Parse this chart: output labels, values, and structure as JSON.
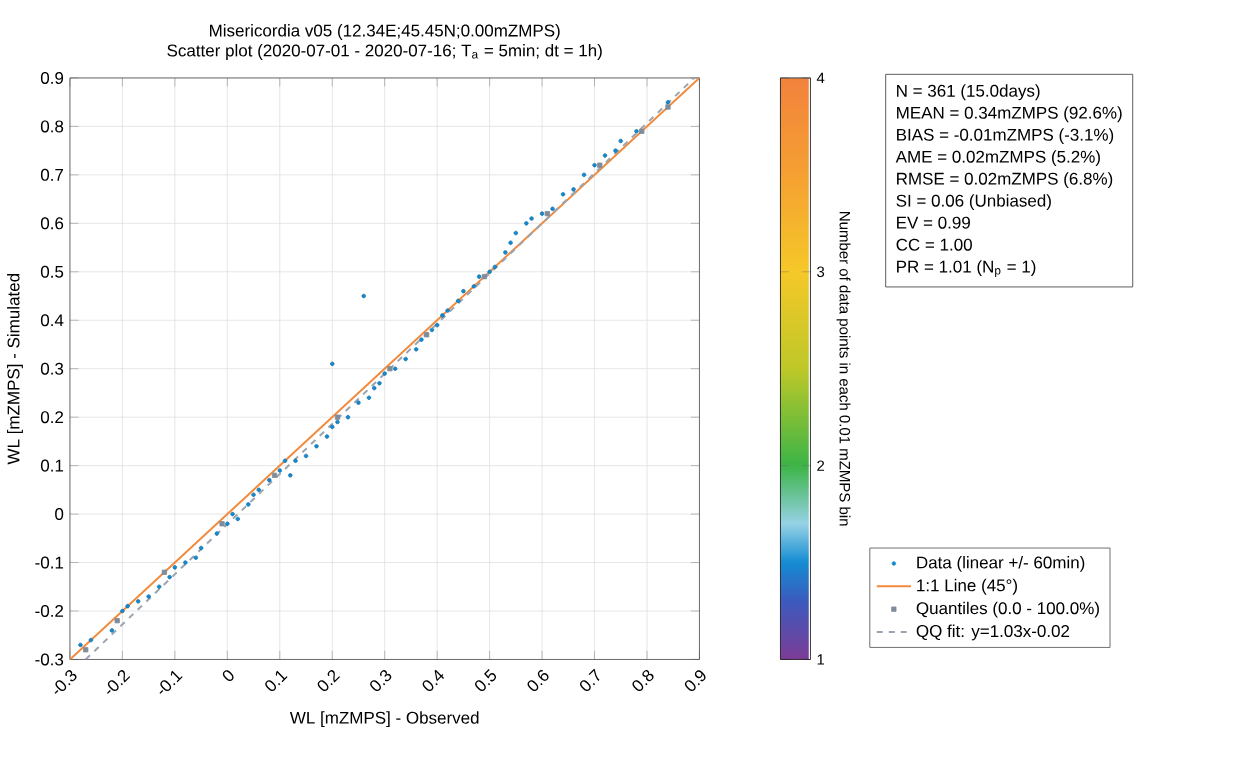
{
  "chart_data": {
    "type": "scatter",
    "title": "Misericordia v05 (12.34E;45.45N;0.00mZMPS)",
    "subtitle": "Scatter plot  (2020-07-01 - 2020-07-16; T$_{a}$ = 5min; dt = 1h)",
    "xlabel": "WL [mZMPS] - Observed",
    "ylabel": "WL [mZMPS] - Simulated",
    "clabel": "Number of data points in each 0.01 mZMPS bin",
    "xlim": [
      -0.3,
      0.9
    ],
    "ylim": [
      -0.3,
      0.9
    ],
    "xticks": [
      -0.3,
      -0.2,
      -0.1,
      0,
      0.1,
      0.2,
      0.3,
      0.4,
      0.5,
      0.6,
      0.7,
      0.8,
      0.9
    ],
    "yticks": [
      -0.3,
      -0.2,
      -0.1,
      0,
      0.1,
      0.2,
      0.3,
      0.4,
      0.5,
      0.6,
      0.7,
      0.8,
      0.9
    ],
    "clim": [
      1,
      4
    ],
    "cticks": [
      1,
      2,
      3,
      4
    ],
    "grid": true,
    "legend": "right",
    "annotations": [
      "N        = 361 (15.0days)",
      "MEAN = 0.34mZMPS (92.6%)",
      "BIAS   = -0.01mZMPS (-3.1%)",
      "AME   = 0.02mZMPS (5.2%)",
      "RMSE = 0.02mZMPS (6.8%)",
      "SI        = 0.06 (Unbiased)",
      "EV      = 0.99",
      "CC      = 1.00",
      "PR      = 1.01 (N$_{p}$ = 1)"
    ],
    "series": [
      {
        "name": "Data (linear +/- 60min)",
        "marker": "circle",
        "color": "#148cd2",
        "x": [
          -0.28,
          -0.26,
          -0.22,
          -0.2,
          -0.19,
          -0.17,
          -0.15,
          -0.13,
          -0.11,
          -0.1,
          -0.08,
          -0.06,
          -0.05,
          -0.02,
          0.0,
          0.01,
          0.02,
          0.04,
          0.05,
          0.06,
          0.08,
          0.1,
          0.11,
          0.12,
          0.13,
          0.15,
          0.17,
          0.19,
          0.2,
          0.21,
          0.23,
          0.25,
          0.26,
          0.2,
          0.27,
          0.28,
          0.29,
          0.3,
          0.32,
          0.34,
          0.36,
          0.37,
          0.39,
          0.4,
          0.41,
          0.42,
          0.44,
          0.45,
          0.47,
          0.48,
          0.5,
          0.51,
          0.53,
          0.54,
          0.55,
          0.57,
          0.58,
          0.6,
          0.62,
          0.64,
          0.66,
          0.68,
          0.7,
          0.72,
          0.74,
          0.75,
          0.78,
          0.84
        ],
        "values": [
          -0.27,
          -0.26,
          -0.24,
          -0.2,
          -0.19,
          -0.18,
          -0.17,
          -0.15,
          -0.13,
          -0.11,
          -0.1,
          -0.09,
          -0.07,
          -0.04,
          -0.02,
          0.0,
          -0.01,
          0.02,
          0.04,
          0.05,
          0.07,
          0.09,
          0.11,
          0.08,
          0.11,
          0.12,
          0.14,
          0.16,
          0.18,
          0.19,
          0.2,
          0.23,
          0.45,
          0.31,
          0.24,
          0.26,
          0.27,
          0.29,
          0.3,
          0.32,
          0.34,
          0.36,
          0.38,
          0.39,
          0.41,
          0.42,
          0.44,
          0.46,
          0.47,
          0.49,
          0.5,
          0.51,
          0.54,
          0.56,
          0.58,
          0.6,
          0.61,
          0.62,
          0.63,
          0.66,
          0.67,
          0.7,
          0.72,
          0.74,
          0.75,
          0.77,
          0.79,
          0.85
        ],
        "cvalues": [
          1.5,
          1.5,
          1.5,
          1.5,
          1.5,
          1.5,
          1.5,
          1.5,
          1.5,
          1.5,
          1.5,
          1.5,
          1.5,
          1.5,
          1.5,
          1.5,
          1.5,
          1.5,
          1.5,
          1.5,
          1.5,
          1.5,
          1.5,
          1.5,
          1.5,
          1.5,
          1.5,
          1.5,
          1.5,
          1.5,
          1.5,
          1.5,
          1.5,
          1.5,
          1.5,
          1.5,
          1.5,
          1.5,
          1.5,
          1.5,
          1.5,
          1.5,
          1.5,
          1.5,
          1.5,
          1.5,
          1.5,
          1.5,
          1.5,
          1.5,
          1.5,
          1.5,
          1.5,
          1.5,
          1.5,
          1.5,
          1.5,
          1.5,
          1.5,
          1.5,
          1.5,
          1.5,
          1.5,
          1.5,
          1.5,
          1.5,
          1.5,
          1.5
        ]
      },
      {
        "name": "1:1 Line (45°)",
        "type": "line",
        "color": "#f28a3c",
        "line_style": "solid",
        "x": [
          -0.3,
          0.9
        ],
        "values": [
          -0.3,
          0.9
        ]
      },
      {
        "name": "Quantiles (0.0 - 100.0%)",
        "marker": "square",
        "color": "#7f8c99",
        "x": [
          -0.27,
          -0.21,
          -0.12,
          -0.01,
          0.09,
          0.21,
          0.31,
          0.38,
          0.49,
          0.61,
          0.71,
          0.79,
          0.84
        ],
        "values": [
          -0.28,
          -0.22,
          -0.12,
          -0.02,
          0.08,
          0.2,
          0.3,
          0.37,
          0.49,
          0.62,
          0.72,
          0.79,
          0.84
        ]
      },
      {
        "name": "QQ fit: y=1.03x-0.02",
        "type": "line",
        "color": "#9aa5b1",
        "line_style": "dashed",
        "x": [
          -0.27,
          0.89
        ],
        "values": [
          -0.3,
          0.9
        ]
      }
    ]
  }
}
